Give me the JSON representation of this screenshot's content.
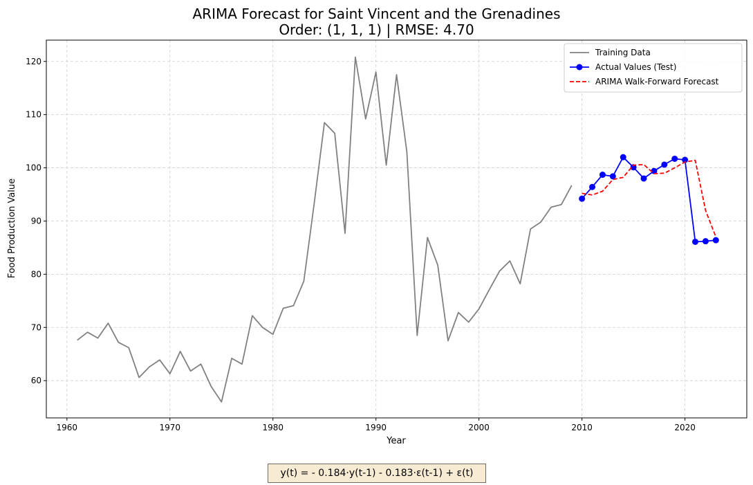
{
  "chart_data": {
    "type": "line",
    "title": "ARIMA Forecast for Saint Vincent and the Grenadines",
    "subtitle": "Order: (1, 1, 1) | RMSE: 4.70",
    "xlabel": "Year",
    "ylabel": "Food Production Value",
    "xlim": [
      1958,
      2026
    ],
    "ylim": [
      53,
      124
    ],
    "xticks": [
      1960,
      1970,
      1980,
      1990,
      2000,
      2010,
      2020
    ],
    "yticks": [
      60,
      70,
      80,
      90,
      100,
      110,
      120
    ],
    "grid": true,
    "legend_position": "top-right",
    "series": [
      {
        "name": "Training Data",
        "color": "#808080",
        "style": "solid",
        "x": [
          1961,
          1962,
          1963,
          1964,
          1965,
          1966,
          1967,
          1968,
          1969,
          1970,
          1971,
          1972,
          1973,
          1974,
          1975,
          1976,
          1977,
          1978,
          1979,
          1980,
          1981,
          1982,
          1983,
          1984,
          1985,
          1986,
          1987,
          1988,
          1989,
          1990,
          1991,
          1992,
          1993,
          1994,
          1995,
          1996,
          1997,
          1998,
          1999,
          2000,
          2001,
          2002,
          2003,
          2004,
          2005,
          2006,
          2007,
          2008,
          2009
        ],
        "values": [
          67.6,
          69.1,
          68.0,
          70.8,
          67.2,
          66.2,
          60.6,
          62.6,
          63.9,
          61.3,
          65.5,
          61.8,
          63.1,
          58.9,
          56.0,
          64.2,
          63.1,
          72.2,
          70.0,
          68.7,
          73.6,
          74.1,
          78.7,
          93.2,
          108.5,
          106.5,
          87.7,
          120.8,
          109.2,
          118.0,
          100.5,
          117.5,
          103.0,
          68.5,
          86.9,
          81.7,
          67.5,
          72.8,
          71.0,
          73.5,
          77.1,
          80.6,
          82.5,
          78.2,
          88.5,
          89.8,
          92.6,
          93.1,
          96.7
        ]
      },
      {
        "name": "Actual Values (Test)",
        "color": "#0000ff",
        "style": "solid-marker",
        "x": [
          2010,
          2011,
          2012,
          2013,
          2014,
          2015,
          2016,
          2017,
          2018,
          2019,
          2020,
          2021,
          2022,
          2023
        ],
        "values": [
          94.2,
          96.4,
          98.7,
          98.4,
          102.0,
          100.1,
          98.0,
          99.4,
          100.6,
          101.7,
          101.5,
          86.1,
          86.2,
          86.4
        ]
      },
      {
        "name": "ARIMA Walk-Forward Forecast",
        "color": "#ff0000",
        "style": "dashed",
        "x": [
          2010,
          2011,
          2012,
          2013,
          2014,
          2015,
          2016,
          2017,
          2018,
          2019,
          2020,
          2021,
          2022,
          2023
        ],
        "values": [
          95.2,
          94.9,
          95.6,
          97.8,
          98.2,
          100.5,
          100.6,
          98.9,
          99.0,
          100.0,
          101.1,
          101.4,
          92.0,
          87.0
        ]
      }
    ]
  },
  "equation": "y(t) = - 0.184·y(t-1) - 0.183·ε(t-1) + ε(t)"
}
